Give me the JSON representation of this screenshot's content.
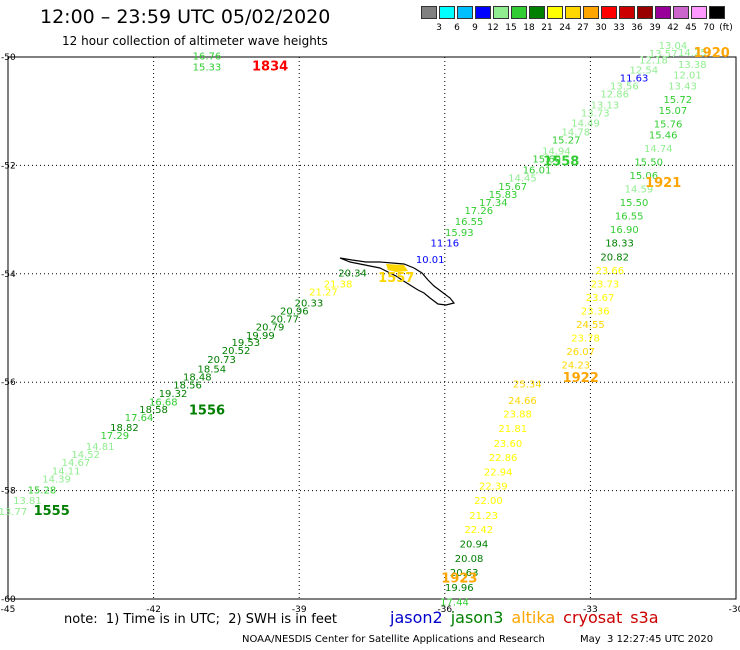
{
  "header": {
    "title": "12:00 – 23:59 UTC 05/02/2020",
    "subtitle": "12 hour collection of altimeter wave heights"
  },
  "scale": {
    "unit": "(ft)",
    "steps": [
      {
        "label": "3",
        "color": "#808080"
      },
      {
        "label": "6",
        "color": "#00ffff"
      },
      {
        "label": "9",
        "color": "#00bfff"
      },
      {
        "label": "12",
        "color": "#0000ff"
      },
      {
        "label": "15",
        "color": "#90ee90"
      },
      {
        "label": "18",
        "color": "#32cd32"
      },
      {
        "label": "21",
        "color": "#008000"
      },
      {
        "label": "24",
        "color": "#ffff00"
      },
      {
        "label": "27",
        "color": "#ffd700"
      },
      {
        "label": "30",
        "color": "#ffa500"
      },
      {
        "label": "33",
        "color": "#ff0000"
      },
      {
        "label": "36",
        "color": "#cc0000"
      },
      {
        "label": "39",
        "color": "#990000"
      },
      {
        "label": "42",
        "color": "#990099"
      },
      {
        "label": "45",
        "color": "#cc66cc"
      },
      {
        "label": "70",
        "color": "#ff99ff"
      },
      {
        "label": "",
        "color": "#000000"
      }
    ]
  },
  "axes": {
    "lon_ticks": [
      "-45",
      "-42",
      "-39",
      "-36",
      "-33",
      "-30"
    ],
    "lat_ticks": [
      "-50",
      "-52",
      "-54",
      "-56",
      "-58",
      "-60"
    ],
    "lon_values": [
      -45,
      -42,
      -39,
      -36,
      -33,
      -30
    ],
    "lat_values": [
      -50,
      -52,
      -54,
      -56,
      -58,
      -60
    ],
    "lon_range": [
      -45,
      -30
    ],
    "lat_range": [
      -60,
      -50
    ]
  },
  "tracks": [
    {
      "id": "1555",
      "color": "#008000",
      "label_lon": -44.1,
      "label_lat": -58.45,
      "points": [
        [
          -44.9,
          -58.45,
          "13.77"
        ],
        [
          -44.6,
          -58.25,
          "13.81"
        ],
        [
          -44.3,
          -58.05,
          "15.28"
        ],
        [
          -44.0,
          -57.85,
          "14.39"
        ],
        [
          -43.8,
          -57.7,
          "14.11"
        ],
        [
          -43.6,
          -57.55,
          "14.67"
        ],
        [
          -43.4,
          -57.4,
          "14.52"
        ],
        [
          -43.1,
          -57.25,
          "14.81"
        ],
        [
          -42.8,
          -57.05,
          "17.29"
        ],
        [
          -42.6,
          -56.9,
          "18.82"
        ],
        [
          -42.3,
          -56.72,
          "17.64"
        ]
      ]
    },
    {
      "id": "1556",
      "color": "#008000",
      "label_lon": -40.9,
      "label_lat": -56.6,
      "points": [
        [
          -42.0,
          -56.57,
          "18.58"
        ],
        [
          -41.8,
          -56.43,
          "16.68"
        ],
        [
          -41.6,
          -56.27,
          "19.32"
        ],
        [
          -41.3,
          -56.12,
          "18.56"
        ],
        [
          -41.1,
          -55.97,
          "18.48"
        ],
        [
          -40.8,
          -55.82,
          "18.54"
        ],
        [
          -40.6,
          -55.65,
          "20.73"
        ],
        [
          -40.3,
          -55.48,
          "20.52"
        ],
        [
          -40.1,
          -55.33,
          "19.53"
        ],
        [
          -39.8,
          -55.2,
          "19.99"
        ],
        [
          -39.6,
          -55.05,
          "20.79"
        ],
        [
          -39.3,
          -54.9,
          "20.77"
        ],
        [
          -39.1,
          -54.75,
          "20.96"
        ],
        [
          -38.8,
          -54.6,
          "20.33"
        ]
      ]
    },
    {
      "id": "1557",
      "color": "#ffd700",
      "label_lon": -37.0,
      "label_lat": -54.15,
      "points": [
        [
          -38.5,
          -54.4,
          "21.27"
        ],
        [
          -38.2,
          -54.25,
          "21.38"
        ],
        [
          -37.9,
          -54.05,
          "20.34"
        ]
      ]
    },
    {
      "id": "1558",
      "color": "#32cd32",
      "label_lon": -33.6,
      "label_lat": -52.0,
      "points": [
        [
          -36.3,
          -53.8,
          "10.01"
        ],
        [
          -36.0,
          -53.5,
          "11.16"
        ],
        [
          -35.7,
          -53.3,
          "15.93"
        ],
        [
          -35.5,
          -53.1,
          "16.55"
        ],
        [
          -35.3,
          -52.9,
          "17.26"
        ],
        [
          -35.0,
          -52.75,
          "17.34"
        ],
        [
          -34.8,
          -52.6,
          "15.83"
        ],
        [
          -34.6,
          -52.45,
          "15.67"
        ],
        [
          -34.4,
          -52.3,
          "14.45"
        ],
        [
          -34.1,
          -52.15,
          "16.01"
        ],
        [
          -33.9,
          -51.95,
          "15.60"
        ],
        [
          -33.7,
          -51.8,
          "14.94"
        ],
        [
          -33.5,
          -51.6,
          "15.27"
        ],
        [
          -33.3,
          -51.45,
          "14.78"
        ],
        [
          -33.1,
          -51.28,
          "14.49"
        ],
        [
          -32.9,
          -51.1,
          "13.73"
        ],
        [
          -32.7,
          -50.95,
          "13.13"
        ],
        [
          -32.5,
          -50.75,
          "12.86"
        ],
        [
          -32.3,
          -50.6,
          "13.56"
        ],
        [
          -32.1,
          -50.45,
          "11.63"
        ],
        [
          -31.9,
          -50.3,
          "12.54"
        ],
        [
          -31.7,
          -50.12,
          "12.18"
        ],
        [
          -31.5,
          -50.0,
          "13.57"
        ],
        [
          -31.3,
          -49.85,
          "13.04"
        ]
      ]
    },
    {
      "id": "1834",
      "color": "#ff0000",
      "label_lon": -39.6,
      "label_lat": -50.25,
      "points": [
        [
          -40.9,
          -50.05,
          "16.76"
        ],
        [
          -40.9,
          -50.25,
          "15.33"
        ]
      ]
    },
    {
      "id": "1920",
      "color": "#ffa500",
      "label_lon": -30.5,
      "label_lat": -50.0,
      "points": [
        [
          -30.9,
          -49.98,
          "14.25"
        ],
        [
          -30.9,
          -50.2,
          "13.38"
        ],
        [
          -31.0,
          -50.4,
          "12.01"
        ],
        [
          -31.1,
          -50.6,
          "13.43"
        ],
        [
          -31.2,
          -50.85,
          "15.72"
        ],
        [
          -31.3,
          -51.05,
          "15.07"
        ],
        [
          -31.4,
          -51.3,
          "15.76"
        ],
        [
          -31.5,
          -51.5,
          "15.46"
        ],
        [
          -31.6,
          -51.75,
          "14.74"
        ]
      ]
    },
    {
      "id": "1921",
      "color": "#ffa500",
      "label_lon": -31.5,
      "label_lat": -52.4,
      "points": [
        [
          -31.8,
          -52.0,
          "15.50"
        ],
        [
          -31.9,
          -52.25,
          "15.06"
        ],
        [
          -32.0,
          -52.5,
          "14.59"
        ],
        [
          -32.1,
          -52.75,
          "15.50"
        ],
        [
          -32.2,
          -53.0,
          "16.55"
        ],
        [
          -32.3,
          -53.25,
          "16.90"
        ],
        [
          -32.4,
          -53.5,
          "18.33"
        ],
        [
          -32.5,
          -53.75,
          "20.82"
        ]
      ]
    },
    {
      "id": "1922",
      "color": "#ffa500",
      "label_lon": -33.2,
      "label_lat": -56.0,
      "points": [
        [
          -32.6,
          -54.0,
          "23.66"
        ],
        [
          -32.7,
          -54.25,
          "23.73"
        ],
        [
          -32.8,
          -54.5,
          "23.67"
        ],
        [
          -32.9,
          -54.75,
          "23.36"
        ],
        [
          -33.0,
          -55.0,
          "24.55"
        ],
        [
          -33.1,
          -55.25,
          "23.78"
        ],
        [
          -33.2,
          -55.5,
          "26.07"
        ],
        [
          -33.3,
          -55.75,
          "24.23"
        ]
      ]
    },
    {
      "id": "1923",
      "color": "#ffa500",
      "label_lon": -35.7,
      "label_lat": -59.7,
      "points": [
        [
          -34.3,
          -56.1,
          "25.34"
        ],
        [
          -34.4,
          -56.4,
          "24.66"
        ],
        [
          -34.5,
          -56.65,
          "23.88"
        ],
        [
          -34.6,
          -56.92,
          "21.81"
        ],
        [
          -34.7,
          -57.2,
          "23.60"
        ],
        [
          -34.8,
          -57.45,
          "22.86"
        ],
        [
          -34.9,
          -57.72,
          "22.94"
        ],
        [
          -35.0,
          -57.98,
          "22.39"
        ],
        [
          -35.1,
          -58.25,
          "22.00"
        ],
        [
          -35.2,
          -58.52,
          "21.23"
        ],
        [
          -35.3,
          -58.78,
          "22.42"
        ],
        [
          -35.4,
          -59.05,
          "20.94"
        ],
        [
          -35.5,
          -59.32,
          "20.08"
        ],
        [
          -35.6,
          -59.58,
          "20.63"
        ],
        [
          -35.7,
          -59.85,
          "19.96"
        ],
        [
          -35.8,
          -60.12,
          "17.44"
        ]
      ]
    }
  ],
  "footer": {
    "note": "note:  1) Time is in UTC;  2) SWH is in feet",
    "satellites": [
      {
        "name": "jason2",
        "color": "#0000cc"
      },
      {
        "name": "jason3",
        "color": "#008000"
      },
      {
        "name": "altika",
        "color": "#ffa500"
      },
      {
        "name": "cryosat",
        "color": "#cc0000"
      },
      {
        "name": "s3a",
        "color": "#cc0000"
      }
    ],
    "credit": "NOAA/NESDIS Center for Satellite Applications and Research",
    "stamp": "May  3 12:27:45 UTC 2020"
  }
}
